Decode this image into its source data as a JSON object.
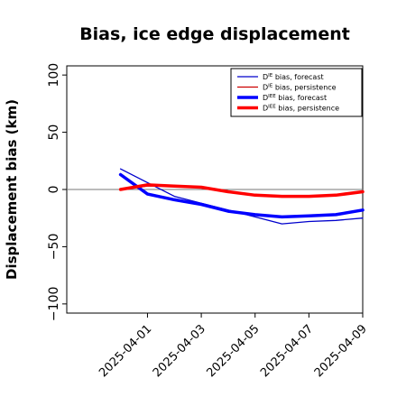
{
  "chart_data": {
    "type": "line",
    "title": "Bias, ice edge displacement",
    "xlabel": "",
    "ylabel": "Displacement bias (km)",
    "ylim": [
      -108,
      108
    ],
    "yticks": [
      100,
      50,
      0,
      -50,
      -100
    ],
    "ytick_labels": [
      "100",
      "50",
      "0",
      "−50",
      "−100"
    ],
    "xlim": [
      "2025-03-29",
      "2025-04-09"
    ],
    "xticks": [
      {
        "date": "2025-04-01",
        "label": "2025-04-01",
        "color": "#2e8b22"
      },
      {
        "date": "2025-04-03",
        "label": "2025-04-03",
        "color": "#000000"
      },
      {
        "date": "2025-04-05",
        "label": "2025-04-05",
        "color": "#000000"
      },
      {
        "date": "2025-04-07",
        "label": "2025-04-07",
        "color": "#000000"
      },
      {
        "date": "2025-04-09",
        "label": "2025-04-09",
        "color": "#000000"
      }
    ],
    "zero_line": true,
    "grid": false,
    "legend_position": "top-right",
    "series": [
      {
        "name": "Dᴵᴱ bias, forecast",
        "name_base": "D",
        "name_sup": "IE",
        "name_rest": " bias, forecast",
        "color": "#0000cc",
        "linewidth": "thin",
        "x": [
          "2025-03-31",
          "2025-04-01",
          "2025-04-02",
          "2025-04-03",
          "2025-04-04",
          "2025-04-05",
          "2025-04-06",
          "2025-04-07",
          "2025-04-08",
          "2025-04-09"
        ],
        "y": [
          18,
          6,
          -6,
          -12,
          -18,
          -24,
          -30,
          -28,
          -27,
          -25
        ]
      },
      {
        "name": "Dᴵᴱ bias, persistence",
        "name_base": "D",
        "name_sup": "IE",
        "name_rest": " bias, persistence",
        "color": "#cc0000",
        "linewidth": "thin",
        "x": [
          "2025-03-31",
          "2025-04-01",
          "2025-04-02",
          "2025-04-03",
          "2025-04-04",
          "2025-04-05",
          "2025-04-06",
          "2025-04-07",
          "2025-04-08",
          "2025-04-09"
        ],
        "y": [
          0,
          3,
          3,
          2,
          -2,
          -5,
          -6,
          -6,
          -5,
          -2
        ]
      },
      {
        "name": "Dᴵᴱᴱ bias, forecast",
        "name_base": "D",
        "name_sup": "IEE",
        "name_rest": " bias, forecast",
        "color": "#0000ff",
        "linewidth": "thick",
        "x": [
          "2025-03-31",
          "2025-04-01",
          "2025-04-02",
          "2025-04-03",
          "2025-04-04",
          "2025-04-05",
          "2025-04-06",
          "2025-04-07",
          "2025-04-08",
          "2025-04-09"
        ],
        "y": [
          13,
          -4,
          -9,
          -13,
          -19,
          -22,
          -24,
          -23,
          -22,
          -18
        ]
      },
      {
        "name": "Dᴵᴱᴱ bias, persistence",
        "name_base": "D",
        "name_sup": "IEE",
        "name_rest": " bias, persistence",
        "color": "#ff0000",
        "linewidth": "thick",
        "x": [
          "2025-03-31",
          "2025-04-01",
          "2025-04-02",
          "2025-04-03",
          "2025-04-04",
          "2025-04-05",
          "2025-04-06",
          "2025-04-07",
          "2025-04-08",
          "2025-04-09"
        ],
        "y": [
          0,
          4,
          3,
          2,
          -2,
          -5,
          -6,
          -6,
          -5,
          -2
        ]
      }
    ]
  }
}
